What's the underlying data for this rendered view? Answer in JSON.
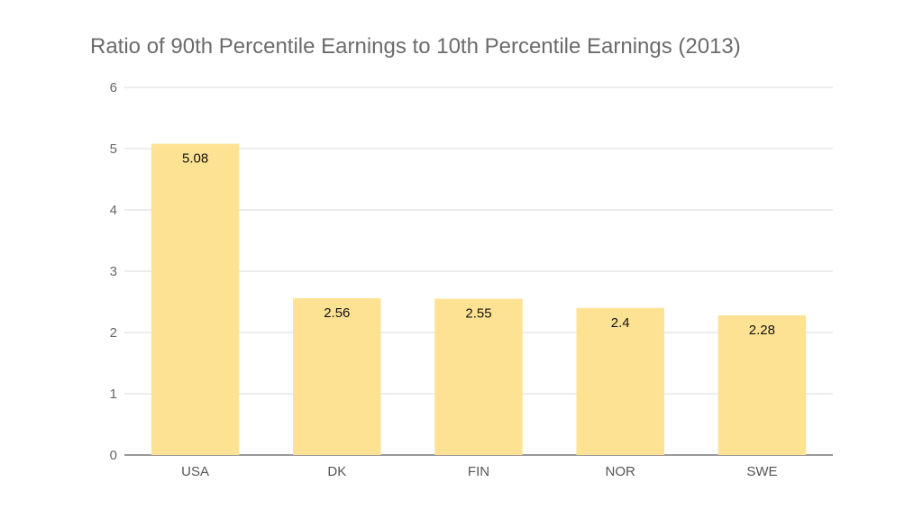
{
  "chart_data": {
    "type": "bar",
    "title": "Ratio of 90th Percentile Earnings to 10th Percentile Earnings (2013)",
    "categories": [
      "USA",
      "DK",
      "FIN",
      "NOR",
      "SWE"
    ],
    "values": [
      5.08,
      2.56,
      2.55,
      2.4,
      2.28
    ],
    "data_labels": [
      "5.08",
      "2.56",
      "2.55",
      "2.4",
      "2.28"
    ],
    "yticks": [
      0,
      1,
      2,
      3,
      4,
      5,
      6
    ],
    "ylim": [
      0,
      6
    ],
    "xlabel": "",
    "ylabel": "",
    "grid": true,
    "legend": "none",
    "bar_color": "#fde293"
  }
}
